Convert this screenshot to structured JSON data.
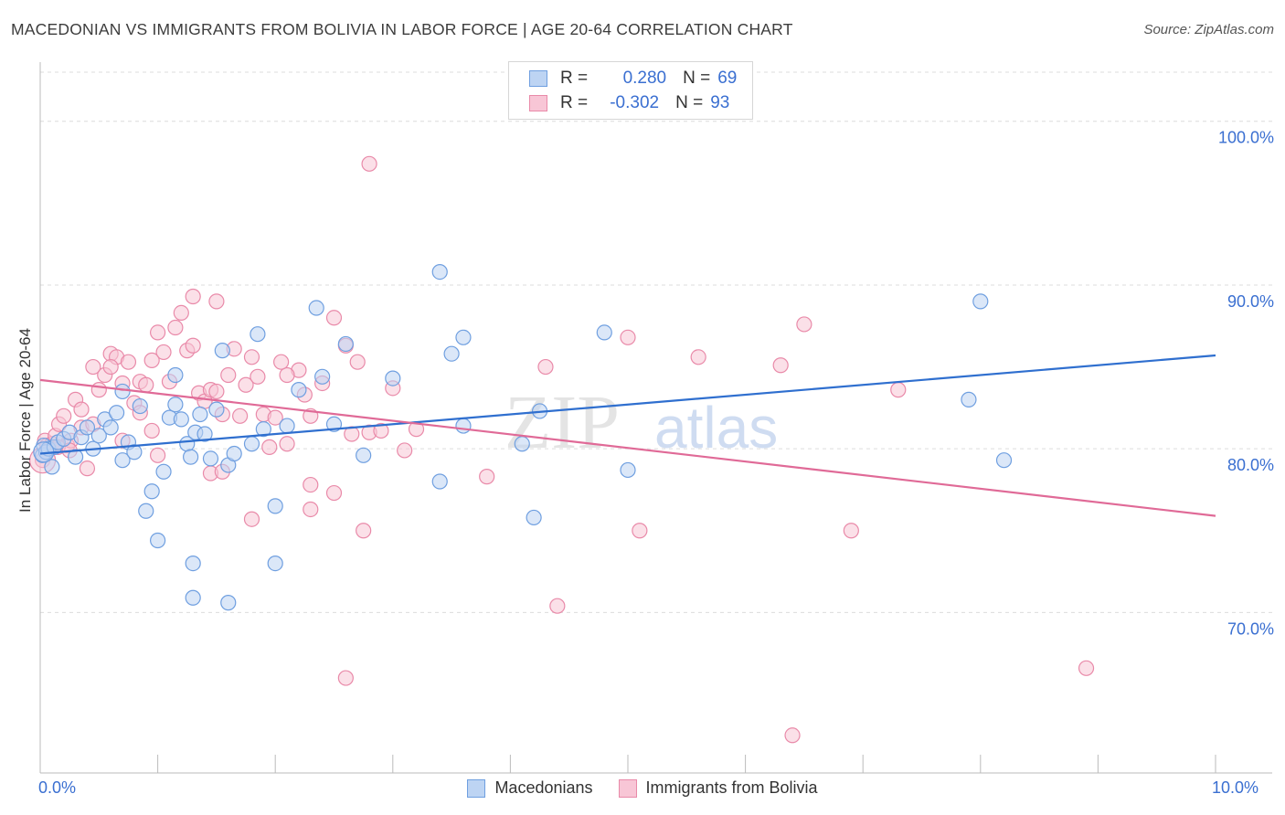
{
  "title": "MACEDONIAN VS IMMIGRANTS FROM BOLIVIA IN LABOR FORCE | AGE 20-64 CORRELATION CHART",
  "source": "Source: ZipAtlas.com",
  "watermark": {
    "zip": "ZIP",
    "atlas": "atlas"
  },
  "legend": {
    "rows": [
      {
        "r_label": "R = ",
        "r_value": "0.280",
        "n_label": "N = ",
        "n_value": "69"
      },
      {
        "r_label": "R = ",
        "r_value": "-0.302",
        "n_label": "N = ",
        "n_value": "93"
      }
    ]
  },
  "bottom_legend": {
    "series1": "Macedonians",
    "series2": "Immigrants from Bolivia"
  },
  "colors": {
    "blue_fill": "#bdd4f3",
    "blue_stroke": "#6f9fe0",
    "blue_line": "#2f6fcf",
    "pink_fill": "#f8c6d6",
    "pink_stroke": "#e98aa9",
    "pink_line": "#e06a97",
    "axis_text": "#3a6fd1",
    "grid": "#dcdcdc"
  },
  "chart_data": {
    "type": "scatter",
    "title": "MACEDONIAN VS IMMIGRANTS FROM BOLIVIA IN LABOR FORCE | AGE 20-64 CORRELATION CHART",
    "xlabel": "",
    "ylabel": "In Labor Force | Age 20-64",
    "xlim": [
      0,
      10
    ],
    "ylim": [
      60.2,
      103.5
    ],
    "x_tick_labels": [
      "0.0%",
      "10.0%"
    ],
    "y_ticks": [
      70,
      80,
      90,
      100
    ],
    "y_tick_labels": [
      "70.0%",
      "80.0%",
      "90.0%",
      "100.0%"
    ],
    "grid": true,
    "legend_position": "top-center",
    "series": [
      {
        "name": "Macedonians",
        "trend": {
          "x": [
            0.0,
            10.0
          ],
          "y": [
            79.7,
            85.7
          ]
        },
        "points": [
          [
            0.02,
            79.6
          ],
          [
            0.03,
            80.2
          ],
          [
            0.05,
            79.8
          ],
          [
            0.07,
            80.0
          ],
          [
            0.1,
            78.9
          ],
          [
            0.12,
            80.1
          ],
          [
            0.15,
            80.4
          ],
          [
            0.2,
            80.6
          ],
          [
            0.25,
            81.0
          ],
          [
            0.3,
            79.5
          ],
          [
            0.35,
            80.7
          ],
          [
            0.4,
            81.3
          ],
          [
            0.45,
            80.0
          ],
          [
            0.5,
            80.8
          ],
          [
            0.55,
            81.8
          ],
          [
            0.6,
            81.3
          ],
          [
            0.65,
            82.2
          ],
          [
            0.7,
            79.3
          ],
          [
            0.75,
            80.4
          ],
          [
            0.8,
            79.8
          ],
          [
            0.85,
            82.6
          ],
          [
            0.9,
            76.2
          ],
          [
            0.95,
            77.4
          ],
          [
            1.0,
            74.4
          ],
          [
            1.05,
            78.6
          ],
          [
            1.1,
            81.9
          ],
          [
            1.15,
            82.7
          ],
          [
            1.2,
            81.8
          ],
          [
            1.25,
            80.3
          ],
          [
            1.28,
            79.5
          ],
          [
            1.32,
            81.0
          ],
          [
            1.36,
            82.1
          ],
          [
            1.4,
            80.9
          ],
          [
            1.45,
            79.4
          ],
          [
            1.5,
            82.4
          ],
          [
            1.55,
            86.0
          ],
          [
            1.6,
            79.0
          ],
          [
            1.65,
            79.7
          ],
          [
            1.8,
            80.3
          ],
          [
            1.85,
            87.0
          ],
          [
            1.9,
            81.2
          ],
          [
            2.0,
            76.5
          ],
          [
            2.1,
            81.4
          ],
          [
            2.2,
            83.6
          ],
          [
            2.35,
            88.6
          ],
          [
            2.5,
            81.5
          ],
          [
            2.6,
            86.4
          ],
          [
            2.75,
            79.6
          ],
          [
            3.0,
            84.3
          ],
          [
            3.4,
            78.0
          ],
          [
            3.5,
            85.8
          ],
          [
            3.6,
            81.4
          ],
          [
            4.1,
            80.3
          ],
          [
            4.2,
            75.8
          ],
          [
            4.25,
            82.3
          ],
          [
            4.8,
            87.1
          ],
          [
            5.0,
            78.7
          ],
          [
            7.9,
            83.0
          ],
          [
            8.0,
            89.0
          ],
          [
            8.2,
            79.3
          ],
          [
            0.7,
            83.5
          ],
          [
            1.3,
            73.0
          ],
          [
            1.6,
            70.6
          ],
          [
            2.0,
            73.0
          ],
          [
            1.3,
            70.9
          ],
          [
            3.4,
            90.8
          ],
          [
            1.15,
            84.5
          ],
          [
            2.4,
            84.4
          ],
          [
            3.6,
            86.8
          ]
        ]
      },
      {
        "name": "Immigrants from Bolivia",
        "trend": {
          "x": [
            0.0,
            10.0
          ],
          "y": [
            84.2,
            75.9
          ]
        },
        "points": [
          [
            0.02,
            79.3
          ],
          [
            0.04,
            80.5
          ],
          [
            0.06,
            80.2
          ],
          [
            0.08,
            80.0
          ],
          [
            0.1,
            80.3
          ],
          [
            0.13,
            80.8
          ],
          [
            0.16,
            81.5
          ],
          [
            0.2,
            82.0
          ],
          [
            0.23,
            80.2
          ],
          [
            0.26,
            80.5
          ],
          [
            0.3,
            83.0
          ],
          [
            0.35,
            81.3
          ],
          [
            0.4,
            78.8
          ],
          [
            0.45,
            81.5
          ],
          [
            0.5,
            83.6
          ],
          [
            0.55,
            84.5
          ],
          [
            0.6,
            85.8
          ],
          [
            0.65,
            85.6
          ],
          [
            0.7,
            84.0
          ],
          [
            0.75,
            85.3
          ],
          [
            0.8,
            82.8
          ],
          [
            0.85,
            84.1
          ],
          [
            0.9,
            83.9
          ],
          [
            0.95,
            85.4
          ],
          [
            1.0,
            87.1
          ],
          [
            1.05,
            85.9
          ],
          [
            1.1,
            84.1
          ],
          [
            1.15,
            87.4
          ],
          [
            1.2,
            88.3
          ],
          [
            1.25,
            86.0
          ],
          [
            1.3,
            86.3
          ],
          [
            1.35,
            83.4
          ],
          [
            1.4,
            82.9
          ],
          [
            1.45,
            83.6
          ],
          [
            1.5,
            83.5
          ],
          [
            1.55,
            82.1
          ],
          [
            1.6,
            84.5
          ],
          [
            1.65,
            86.1
          ],
          [
            1.7,
            82.0
          ],
          [
            1.75,
            83.9
          ],
          [
            1.8,
            85.6
          ],
          [
            1.85,
            84.4
          ],
          [
            1.9,
            82.1
          ],
          [
            1.95,
            80.1
          ],
          [
            2.0,
            81.9
          ],
          [
            2.1,
            80.3
          ],
          [
            2.2,
            84.8
          ],
          [
            2.3,
            82.0
          ],
          [
            2.4,
            84.0
          ],
          [
            2.5,
            77.3
          ],
          [
            2.6,
            86.3
          ],
          [
            2.7,
            85.3
          ],
          [
            2.75,
            75.0
          ],
          [
            2.8,
            81.0
          ],
          [
            3.0,
            83.7
          ],
          [
            3.1,
            79.9
          ],
          [
            4.3,
            85.0
          ],
          [
            5.0,
            86.8
          ],
          [
            5.6,
            85.6
          ],
          [
            6.3,
            85.1
          ],
          [
            6.5,
            87.6
          ],
          [
            7.3,
            83.6
          ],
          [
            8.9,
            66.6
          ],
          [
            2.8,
            97.4
          ],
          [
            2.3,
            77.8
          ],
          [
            2.6,
            66.0
          ],
          [
            4.4,
            70.4
          ],
          [
            5.1,
            75.0
          ],
          [
            6.9,
            75.0
          ],
          [
            6.4,
            62.5
          ],
          [
            1.8,
            75.7
          ],
          [
            2.3,
            76.3
          ],
          [
            3.8,
            78.3
          ],
          [
            1.5,
            89.0
          ],
          [
            1.3,
            89.3
          ],
          [
            2.5,
            88.0
          ],
          [
            0.6,
            85.0
          ],
          [
            0.15,
            80.1
          ],
          [
            0.25,
            79.9
          ],
          [
            0.85,
            82.2
          ],
          [
            1.45,
            78.5
          ],
          [
            2.1,
            84.5
          ],
          [
            2.65,
            80.9
          ],
          [
            3.2,
            81.2
          ],
          [
            0.45,
            85.0
          ],
          [
            0.95,
            81.1
          ],
          [
            1.55,
            78.6
          ],
          [
            2.05,
            85.3
          ],
          [
            0.35,
            82.4
          ],
          [
            2.25,
            83.3
          ],
          [
            0.7,
            80.5
          ],
          [
            1.0,
            79.6
          ],
          [
            2.9,
            81.1
          ]
        ]
      }
    ]
  }
}
